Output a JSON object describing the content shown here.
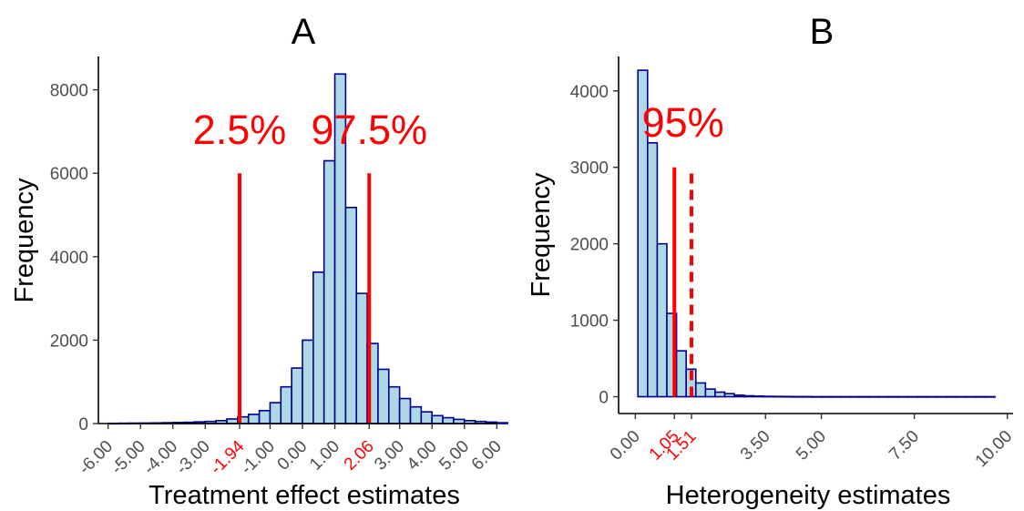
{
  "chart_data": [
    {
      "type": "bar",
      "panel": "A",
      "title": "A",
      "xlabel": "Treatment effect estimates",
      "ylabel": "Frequency",
      "xlim": [
        -6.3,
        6.3
      ],
      "ylim": [
        0,
        8800
      ],
      "y_ticks": [
        0,
        2000,
        4000,
        6000,
        8000
      ],
      "x_ticks": [
        {
          "value": -6,
          "label": "-6.00",
          "color": "#4d4d4d"
        },
        {
          "value": -5,
          "label": "-5.00",
          "color": "#4d4d4d"
        },
        {
          "value": -4,
          "label": "-4.00",
          "color": "#4d4d4d"
        },
        {
          "value": -3,
          "label": "-3.00",
          "color": "#4d4d4d"
        },
        {
          "value": -1.94,
          "label": "-1.94",
          "color": "#ff0000"
        },
        {
          "value": -1,
          "label": "-1.00",
          "color": "#4d4d4d"
        },
        {
          "value": 0,
          "label": "0.00",
          "color": "#4d4d4d"
        },
        {
          "value": 1,
          "label": "1.00",
          "color": "#4d4d4d"
        },
        {
          "value": 2.06,
          "label": "2.06",
          "color": "#ff0000"
        },
        {
          "value": 3,
          "label": "3.00",
          "color": "#4d4d4d"
        },
        {
          "value": 4,
          "label": "4.00",
          "color": "#4d4d4d"
        },
        {
          "value": 5,
          "label": "5.00",
          "color": "#4d4d4d"
        },
        {
          "value": 6,
          "label": "6.00",
          "color": "#4d4d4d"
        }
      ],
      "bin_start": -6,
      "bin_width": 0.3333,
      "values": [
        5,
        8,
        10,
        12,
        15,
        20,
        25,
        30,
        40,
        50,
        70,
        110,
        160,
        220,
        310,
        500,
        880,
        1330,
        2000,
        3630,
        6300,
        8380,
        5180,
        3120,
        1920,
        1300,
        880,
        600,
        400,
        280,
        190,
        140,
        100,
        70,
        50,
        35,
        20
      ],
      "ref_lines": [
        {
          "x": -1.94,
          "top": 6000,
          "style": "solid"
        },
        {
          "x": 2.06,
          "top": 6000,
          "style": "solid"
        }
      ],
      "annotations": [
        {
          "text": "2.5%",
          "x": -1.94,
          "y": 6700
        },
        {
          "text": "97.5%",
          "x": 2.06,
          "y": 6700
        }
      ]
    },
    {
      "type": "bar",
      "panel": "B",
      "title": "B",
      "xlabel": "Heterogeneity estimates",
      "ylabel": "Frequency",
      "xlim": [
        -0.45,
        10.4
      ],
      "ylim": [
        -220,
        4450
      ],
      "y_ticks": [
        0,
        1000,
        2000,
        3000,
        4000
      ],
      "x_ticks": [
        {
          "value": 0,
          "label": "0.00",
          "color": "#4d4d4d"
        },
        {
          "value": 1.05,
          "label": "1.05",
          "color": "#ff0000"
        },
        {
          "value": 1.51,
          "label": "1.51",
          "color": "#ff0000"
        },
        {
          "value": 3.5,
          "label": "3.50",
          "color": "#4d4d4d"
        },
        {
          "value": 5,
          "label": "5.00",
          "color": "#4d4d4d"
        },
        {
          "value": 7.5,
          "label": "7.50",
          "color": "#4d4d4d"
        },
        {
          "value": 10,
          "label": "10.00",
          "color": "#4d4d4d"
        }
      ],
      "bin_start": 0.07,
      "bin_width": 0.2594,
      "values": [
        4270,
        3320,
        2000,
        1090,
        600,
        360,
        180,
        100,
        60,
        40,
        20,
        12,
        8,
        5,
        4,
        3,
        2,
        2,
        1,
        1,
        1,
        1,
        1,
        1,
        1,
        1,
        1,
        1,
        1,
        1,
        1,
        1,
        1,
        1,
        1,
        1,
        1
      ],
      "ref_lines": [
        {
          "x": 1.05,
          "top": 3000,
          "style": "solid"
        },
        {
          "x": 1.51,
          "top": 3000,
          "style": "dashed"
        }
      ],
      "annotations": [
        {
          "text": "95%",
          "x": 1.28,
          "y": 3400
        }
      ]
    }
  ],
  "colors": {
    "bar_fill": "#add8e6",
    "bar_stroke": "#00008b",
    "reference": "#ff0000"
  }
}
